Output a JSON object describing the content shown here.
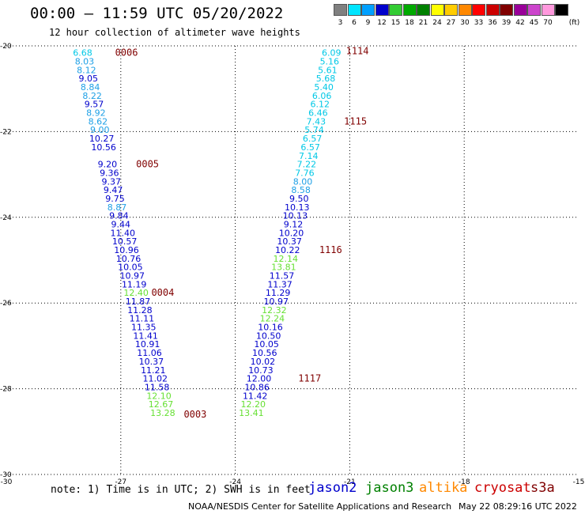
{
  "header": {
    "title": "00:00 – 11:59 UTC 05/20/2022",
    "subtitle": "12 hour collection of altimeter wave heights"
  },
  "legend": {
    "unit": "(ft)",
    "items": [
      {
        "label": "3",
        "color": "#808080"
      },
      {
        "label": "6",
        "color": "#00e5ff"
      },
      {
        "label": "9",
        "color": "#00a0ff"
      },
      {
        "label": "12",
        "color": "#0000cc"
      },
      {
        "label": "15",
        "color": "#33cc33"
      },
      {
        "label": "18",
        "color": "#00aa00"
      },
      {
        "label": "21",
        "color": "#008000"
      },
      {
        "label": "24",
        "color": "#ffff00"
      },
      {
        "label": "27",
        "color": "#ffcc00"
      },
      {
        "label": "30",
        "color": "#ff8800"
      },
      {
        "label": "33",
        "color": "#ff0000"
      },
      {
        "label": "36",
        "color": "#cc0000"
      },
      {
        "label": "39",
        "color": "#800000"
      },
      {
        "label": "42",
        "color": "#990099"
      },
      {
        "label": "45",
        "color": "#cc44cc"
      },
      {
        "label": "70",
        "color": "#ff99dd"
      },
      {
        "label": "",
        "color": "#000000"
      }
    ]
  },
  "footer": {
    "note": "note: 1) Time is in UTC; 2) SWH is in feet",
    "satellites": [
      {
        "name": "jason2",
        "color": "#0000cc"
      },
      {
        "name": "jason3",
        "color": "#008000"
      },
      {
        "name": "altika",
        "color": "#ff8800"
      },
      {
        "name": "cryosat",
        "color": "#cc0000"
      },
      {
        "name": "s3a",
        "color": "#800000"
      }
    ],
    "credit": "NOAA/NESDIS Center for Satellite Applications and Research",
    "timestamp": "May 22 08:29:16 UTC 2022"
  },
  "chart_data": {
    "type": "scatter",
    "title": "00:00 – 11:59 UTC 05/20/2022",
    "xlabel": "",
    "ylabel": "",
    "xlim": [
      -30,
      -15
    ],
    "ylim": [
      -30,
      -20
    ],
    "x_ticks": [
      "-30",
      "-27",
      "-24",
      "-21",
      "-18",
      "-15"
    ],
    "y_ticks": [
      "-20",
      "-22",
      "-24",
      "-26",
      "-28",
      "-30"
    ],
    "grid": true,
    "colors": {
      "light_cyan": "#00c8e6",
      "cyan_blue": "#1ea0e6",
      "dark_blue": "#0000cc",
      "light_green": "#66e033",
      "time_label": "#800000"
    },
    "tracks": [
      {
        "name": "track-west",
        "points": [
          {
            "lon": -28.0,
            "lat": -20.16,
            "value": "6.68",
            "color": "#00c8e6"
          },
          {
            "lon": -27.95,
            "lat": -20.36,
            "value": "8.03",
            "color": "#1ea0e6"
          },
          {
            "lon": -27.9,
            "lat": -20.56,
            "value": "8.12",
            "color": "#1ea0e6"
          },
          {
            "lon": -27.85,
            "lat": -20.76,
            "value": "9.05",
            "color": "#0000cc"
          },
          {
            "lon": -27.8,
            "lat": -20.96,
            "value": "8.84",
            "color": "#1ea0e6"
          },
          {
            "lon": -27.75,
            "lat": -21.16,
            "value": "8.22",
            "color": "#1ea0e6"
          },
          {
            "lon": -27.7,
            "lat": -21.36,
            "value": "9.57",
            "color": "#0000cc"
          },
          {
            "lon": -27.65,
            "lat": -21.56,
            "value": "8.92",
            "color": "#1ea0e6"
          },
          {
            "lon": -27.6,
            "lat": -21.76,
            "value": "8.62",
            "color": "#1ea0e6"
          },
          {
            "lon": -27.55,
            "lat": -21.96,
            "value": "9.00",
            "color": "#1ea0e6"
          },
          {
            "lon": -27.5,
            "lat": -22.16,
            "value": "10.27",
            "color": "#0000cc"
          },
          {
            "lon": -27.45,
            "lat": -22.36,
            "value": "10.56",
            "color": "#0000cc"
          },
          {
            "lon": -27.35,
            "lat": -22.76,
            "value": "9.20",
            "color": "#0000cc"
          },
          {
            "lon": -27.3,
            "lat": -22.96,
            "value": "9.36",
            "color": "#0000cc"
          },
          {
            "lon": -27.25,
            "lat": -23.16,
            "value": "9.37",
            "color": "#0000cc"
          },
          {
            "lon": -27.2,
            "lat": -23.36,
            "value": "9.47",
            "color": "#0000cc"
          },
          {
            "lon": -27.15,
            "lat": -23.56,
            "value": "9.75",
            "color": "#0000cc"
          },
          {
            "lon": -27.1,
            "lat": -23.76,
            "value": "8.87",
            "color": "#1ea0e6"
          },
          {
            "lon": -27.05,
            "lat": -23.96,
            "value": "9.84",
            "color": "#0000cc"
          },
          {
            "lon": -27.0,
            "lat": -24.16,
            "value": "9.44",
            "color": "#0000cc"
          },
          {
            "lon": -26.95,
            "lat": -24.36,
            "value": "11.40",
            "color": "#0000cc"
          },
          {
            "lon": -26.9,
            "lat": -24.56,
            "value": "10.57",
            "color": "#0000cc"
          },
          {
            "lon": -26.85,
            "lat": -24.76,
            "value": "10.96",
            "color": "#0000cc"
          },
          {
            "lon": -26.8,
            "lat": -24.96,
            "value": "10.76",
            "color": "#0000cc"
          },
          {
            "lon": -26.75,
            "lat": -25.16,
            "value": "10.05",
            "color": "#0000cc"
          },
          {
            "lon": -26.7,
            "lat": -25.36,
            "value": "10.97",
            "color": "#0000cc"
          },
          {
            "lon": -26.65,
            "lat": -25.56,
            "value": "11.19",
            "color": "#0000cc"
          },
          {
            "lon": -26.6,
            "lat": -25.76,
            "value": "12.40",
            "color": "#66e033"
          },
          {
            "lon": -26.55,
            "lat": -25.96,
            "value": "11.87",
            "color": "#0000cc"
          },
          {
            "lon": -26.5,
            "lat": -26.16,
            "value": "11.28",
            "color": "#0000cc"
          },
          {
            "lon": -26.45,
            "lat": -26.36,
            "value": "11.11",
            "color": "#0000cc"
          },
          {
            "lon": -26.4,
            "lat": -26.56,
            "value": "11.35",
            "color": "#0000cc"
          },
          {
            "lon": -26.35,
            "lat": -26.76,
            "value": "11.41",
            "color": "#0000cc"
          },
          {
            "lon": -26.3,
            "lat": -26.96,
            "value": "10.91",
            "color": "#0000cc"
          },
          {
            "lon": -26.25,
            "lat": -27.16,
            "value": "11.06",
            "color": "#0000cc"
          },
          {
            "lon": -26.2,
            "lat": -27.36,
            "value": "10.37",
            "color": "#0000cc"
          },
          {
            "lon": -26.15,
            "lat": -27.56,
            "value": "11.21",
            "color": "#0000cc"
          },
          {
            "lon": -26.1,
            "lat": -27.76,
            "value": "11.02",
            "color": "#0000cc"
          },
          {
            "lon": -26.05,
            "lat": -27.96,
            "value": "11.58",
            "color": "#0000cc"
          },
          {
            "lon": -26.0,
            "lat": -28.16,
            "value": "12.10",
            "color": "#66e033"
          },
          {
            "lon": -25.95,
            "lat": -28.36,
            "value": "12.67",
            "color": "#66e033"
          },
          {
            "lon": -25.9,
            "lat": -28.56,
            "value": "13.28",
            "color": "#66e033"
          }
        ]
      },
      {
        "name": "track-east",
        "points": [
          {
            "lon": -21.48,
            "lat": -20.16,
            "value": "6.09",
            "color": "#00c8e6"
          },
          {
            "lon": -21.53,
            "lat": -20.36,
            "value": "5.16",
            "color": "#00c8e6"
          },
          {
            "lon": -21.58,
            "lat": -20.56,
            "value": "5.61",
            "color": "#00c8e6"
          },
          {
            "lon": -21.63,
            "lat": -20.76,
            "value": "5.68",
            "color": "#00c8e6"
          },
          {
            "lon": -21.68,
            "lat": -20.96,
            "value": "5.40",
            "color": "#00c8e6"
          },
          {
            "lon": -21.73,
            "lat": -21.16,
            "value": "6.06",
            "color": "#00c8e6"
          },
          {
            "lon": -21.78,
            "lat": -21.36,
            "value": "6.12",
            "color": "#00c8e6"
          },
          {
            "lon": -21.83,
            "lat": -21.56,
            "value": "6.46",
            "color": "#00c8e6"
          },
          {
            "lon": -21.88,
            "lat": -21.76,
            "value": "7.43",
            "color": "#00c8e6"
          },
          {
            "lon": -21.93,
            "lat": -21.96,
            "value": "5.74",
            "color": "#00c8e6"
          },
          {
            "lon": -21.98,
            "lat": -22.16,
            "value": "6.57",
            "color": "#00c8e6"
          },
          {
            "lon": -22.03,
            "lat": -22.36,
            "value": "6.57",
            "color": "#00c8e6"
          },
          {
            "lon": -22.08,
            "lat": -22.56,
            "value": "7.14",
            "color": "#00c8e6"
          },
          {
            "lon": -22.13,
            "lat": -22.76,
            "value": "7.22",
            "color": "#00c8e6"
          },
          {
            "lon": -22.18,
            "lat": -22.96,
            "value": "7.76",
            "color": "#00c8e6"
          },
          {
            "lon": -22.23,
            "lat": -23.16,
            "value": "8.00",
            "color": "#1ea0e6"
          },
          {
            "lon": -22.28,
            "lat": -23.36,
            "value": "8.58",
            "color": "#1ea0e6"
          },
          {
            "lon": -22.33,
            "lat": -23.56,
            "value": "9.50",
            "color": "#0000cc"
          },
          {
            "lon": -22.38,
            "lat": -23.76,
            "value": "10.13",
            "color": "#0000cc"
          },
          {
            "lon": -22.43,
            "lat": -23.96,
            "value": "10.13",
            "color": "#0000cc"
          },
          {
            "lon": -22.48,
            "lat": -24.16,
            "value": "9.12",
            "color": "#0000cc"
          },
          {
            "lon": -22.53,
            "lat": -24.36,
            "value": "10.20",
            "color": "#0000cc"
          },
          {
            "lon": -22.58,
            "lat": -24.56,
            "value": "10.37",
            "color": "#0000cc"
          },
          {
            "lon": -22.63,
            "lat": -24.76,
            "value": "10.22",
            "color": "#0000cc"
          },
          {
            "lon": -22.68,
            "lat": -24.96,
            "value": "12.14",
            "color": "#66e033"
          },
          {
            "lon": -22.73,
            "lat": -25.16,
            "value": "13.81",
            "color": "#66e033"
          },
          {
            "lon": -22.78,
            "lat": -25.36,
            "value": "11.57",
            "color": "#0000cc"
          },
          {
            "lon": -22.83,
            "lat": -25.56,
            "value": "11.37",
            "color": "#0000cc"
          },
          {
            "lon": -22.88,
            "lat": -25.76,
            "value": "11.29",
            "color": "#0000cc"
          },
          {
            "lon": -22.93,
            "lat": -25.96,
            "value": "10.97",
            "color": "#0000cc"
          },
          {
            "lon": -22.98,
            "lat": -26.16,
            "value": "12.32",
            "color": "#66e033"
          },
          {
            "lon": -23.03,
            "lat": -26.36,
            "value": "12.24",
            "color": "#66e033"
          },
          {
            "lon": -23.08,
            "lat": -26.56,
            "value": "10.16",
            "color": "#0000cc"
          },
          {
            "lon": -23.13,
            "lat": -26.76,
            "value": "10.50",
            "color": "#0000cc"
          },
          {
            "lon": -23.18,
            "lat": -26.96,
            "value": "10.05",
            "color": "#0000cc"
          },
          {
            "lon": -23.23,
            "lat": -27.16,
            "value": "10.56",
            "color": "#0000cc"
          },
          {
            "lon": -23.28,
            "lat": -27.36,
            "value": "10.02",
            "color": "#0000cc"
          },
          {
            "lon": -23.33,
            "lat": -27.56,
            "value": "10.73",
            "color": "#0000cc"
          },
          {
            "lon": -23.38,
            "lat": -27.76,
            "value": "12.00",
            "color": "#0000cc"
          },
          {
            "lon": -23.43,
            "lat": -27.96,
            "value": "10.86",
            "color": "#0000cc"
          },
          {
            "lon": -23.48,
            "lat": -28.16,
            "value": "11.42",
            "color": "#0000cc"
          },
          {
            "lon": -23.53,
            "lat": -28.36,
            "value": "12.20",
            "color": "#66e033"
          },
          {
            "lon": -23.58,
            "lat": -28.56,
            "value": "13.41",
            "color": "#66e033"
          }
        ]
      }
    ],
    "time_labels": [
      {
        "label": "0006",
        "lon": -26.85,
        "lat": -20.16
      },
      {
        "label": "0005",
        "lon": -26.3,
        "lat": -22.76
      },
      {
        "label": "0004",
        "lon": -25.9,
        "lat": -25.76
      },
      {
        "label": "0003",
        "lon": -25.05,
        "lat": -28.6
      },
      {
        "label": "1114",
        "lon": -20.8,
        "lat": -20.12
      },
      {
        "label": "1115",
        "lon": -20.85,
        "lat": -21.76
      },
      {
        "label": "1116",
        "lon": -21.5,
        "lat": -24.76
      },
      {
        "label": "1117",
        "lon": -22.05,
        "lat": -27.76
      }
    ]
  }
}
